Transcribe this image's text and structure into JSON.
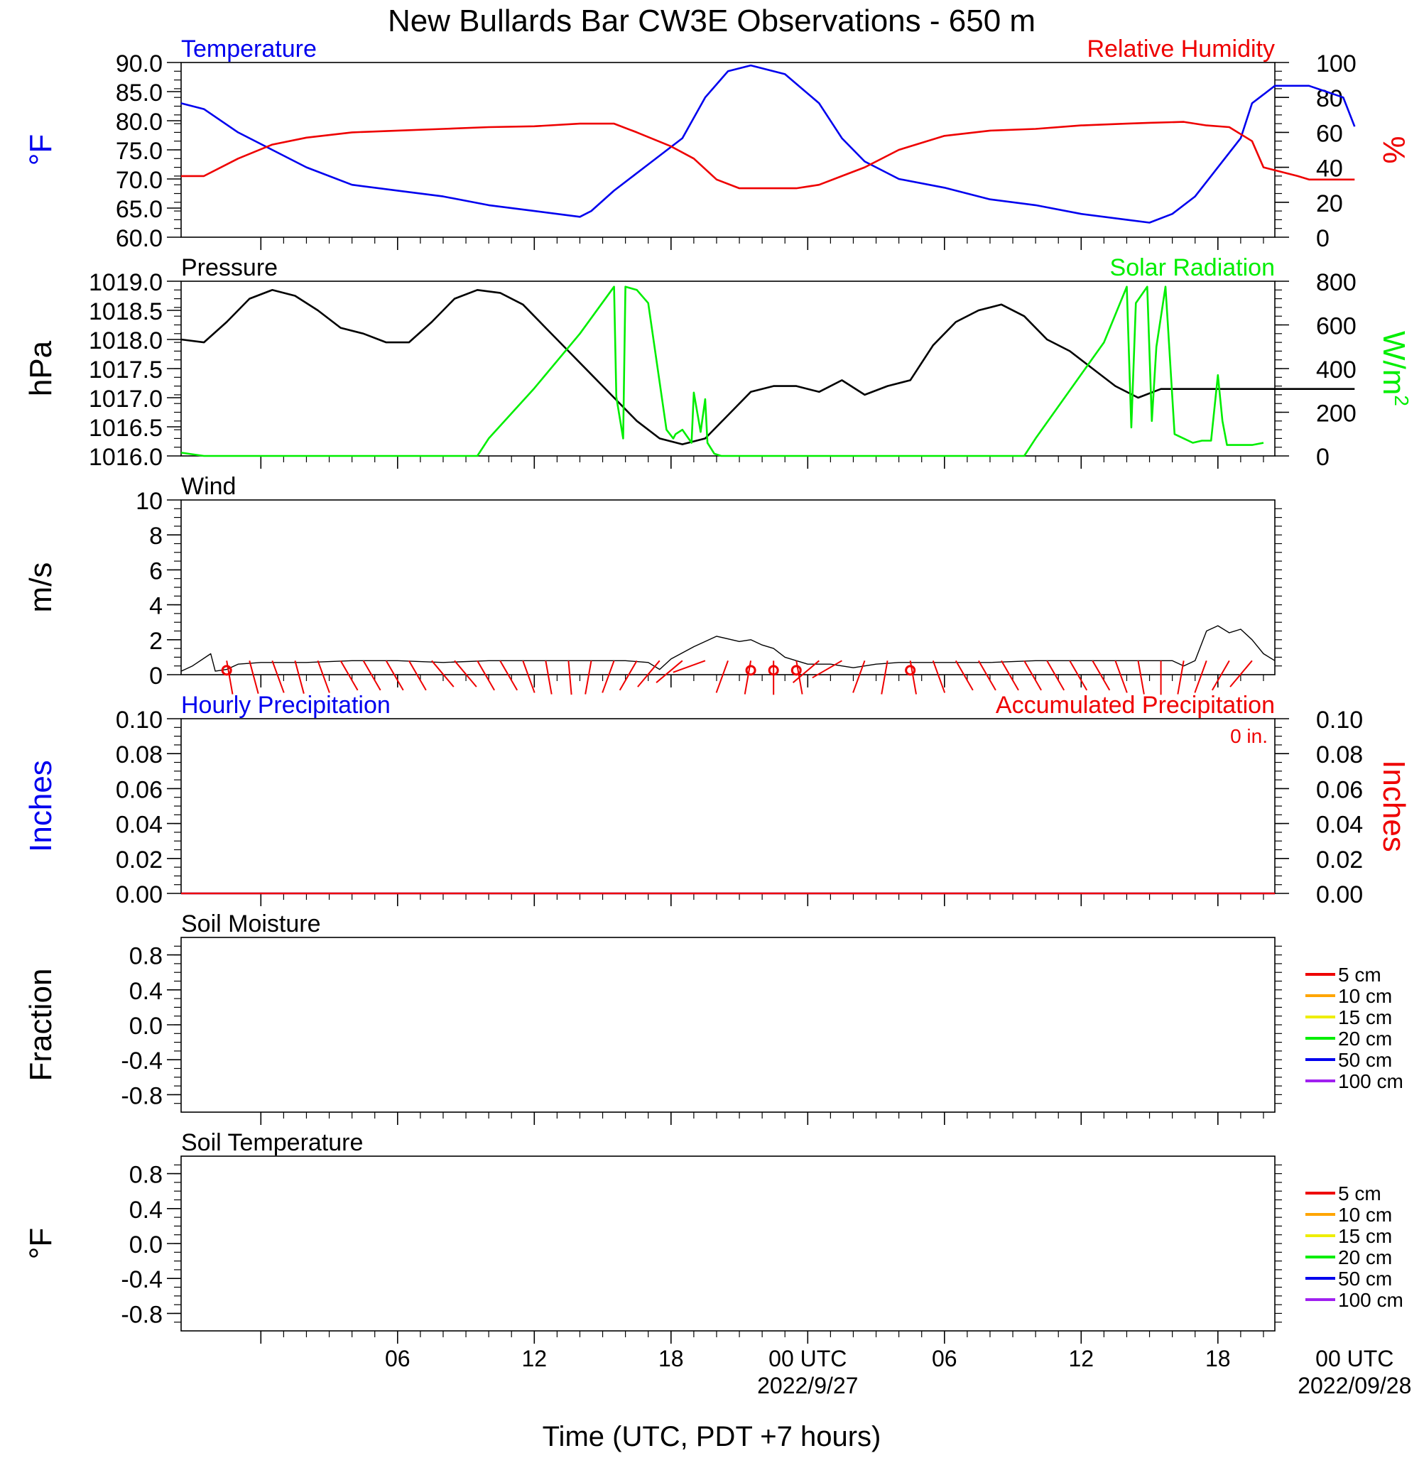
{
  "title": "New Bullards Bar CW3E Observations - 650 m",
  "x_axis": {
    "label": "Time (UTC, PDT +7 hours)",
    "range_hours": [
      -3.5,
      44.5
    ],
    "ticks": [
      {
        "h": 6,
        "label": "06",
        "date": ""
      },
      {
        "h": 12,
        "label": "12",
        "date": ""
      },
      {
        "h": 18,
        "label": "18",
        "date": ""
      },
      {
        "h": 24,
        "label": "00 UTC",
        "date": "2022/9/27"
      },
      {
        "h": 30,
        "label": "06",
        "date": ""
      },
      {
        "h": 36,
        "label": "12",
        "date": ""
      },
      {
        "h": 42,
        "label": "18",
        "date": ""
      },
      {
        "h": 48,
        "label": "00 UTC",
        "date": "2022/09/28"
      }
    ]
  },
  "colors": {
    "temperature": "#0000ee",
    "humidity": "#ee0000",
    "pressure": "#000000",
    "solar": "#00ee00",
    "wind_speed": "#000000",
    "wind_barb": "#ee0000",
    "hourly_precip": "#0000ee",
    "accum_precip": "#ee0000"
  },
  "chart_data": [
    {
      "type": "line",
      "id": "temp_rh",
      "title_left": "Temperature",
      "title_right": "Relative Humidity",
      "ylabel_left": "°F",
      "ylabel_right": "%",
      "ylim_left": [
        60,
        90
      ],
      "yticks_left": [
        "90.0",
        "85.0",
        "80.0",
        "75.0",
        "70.0",
        "65.0",
        "60.0"
      ],
      "ylim_right": [
        0,
        100
      ],
      "yticks_right": [
        "100",
        "80",
        "60",
        "40",
        "20",
        "0"
      ],
      "series": [
        {
          "name": "Temperature",
          "axis": "left",
          "x": [
            -3.5,
            -2.5,
            -1,
            0.5,
            2,
            4,
            6,
            8,
            10,
            12,
            14,
            14.5,
            15.5,
            17,
            18.5,
            19.5,
            20.5,
            21.5,
            23,
            24.5,
            25.5,
            26.5,
            28,
            30,
            32,
            34,
            36,
            38,
            39,
            40,
            41,
            42,
            43,
            43.5,
            44.5,
            46,
            47.5,
            48
          ],
          "values": [
            83,
            82,
            78,
            75,
            72,
            69,
            68,
            67,
            65.5,
            64.5,
            63.5,
            64.5,
            68,
            72.5,
            77,
            84,
            88.5,
            89.5,
            88,
            83,
            77,
            73,
            70,
            68.5,
            66.5,
            65.5,
            64,
            63,
            62.5,
            64,
            67,
            72,
            77,
            83,
            86,
            86,
            84,
            79
          ]
        },
        {
          "name": "Relative Humidity",
          "axis": "right",
          "x": [
            -3.5,
            -2.5,
            -1,
            0.5,
            2,
            4,
            6,
            8,
            10,
            12,
            14,
            15.5,
            16.5,
            18,
            19,
            20,
            21,
            22,
            23.5,
            24.5,
            25.5,
            26.5,
            28,
            30,
            32,
            34,
            36,
            38,
            39,
            40.5,
            41.5,
            42.5,
            43.5,
            44,
            45.5,
            46,
            47,
            48
          ],
          "values": [
            35,
            35,
            45,
            53,
            57,
            60,
            61,
            62,
            63,
            63.5,
            65,
            65,
            60,
            52,
            45,
            33,
            28,
            28,
            28,
            30,
            35,
            40,
            50,
            58,
            61,
            62,
            64,
            65,
            65.5,
            66,
            64,
            63,
            55,
            40,
            35,
            33,
            33,
            33
          ]
        }
      ]
    },
    {
      "type": "line",
      "id": "pressure_solar",
      "title_left": "Pressure",
      "title_right": "Solar Radiation",
      "ylabel_left": "hPa",
      "ylabel_right": "W/m",
      "ylabel_right_sup": "2",
      "ylim_left": [
        1016.0,
        1019.0
      ],
      "yticks_left": [
        "1019.0",
        "1018.5",
        "1018.0",
        "1017.5",
        "1017.0",
        "1016.5",
        "1016.0"
      ],
      "ylim_right": [
        0,
        800
      ],
      "yticks_right": [
        "800",
        "600",
        "400",
        "200",
        "0"
      ],
      "series": [
        {
          "name": "Pressure",
          "axis": "left",
          "x": [
            -3.5,
            -2.5,
            -1.5,
            -0.5,
            0.5,
            1.5,
            2.5,
            3.5,
            4.5,
            5.5,
            6.5,
            7.5,
            8.5,
            9.5,
            10.5,
            11.5,
            12.5,
            13.5,
            14.5,
            15.5,
            16.5,
            17.5,
            18.5,
            19.5,
            20.5,
            21.5,
            22.5,
            23.5,
            24.5,
            25.5,
            26.5,
            27.5,
            28.5,
            29.5,
            30.5,
            31.5,
            32.5,
            33.5,
            34.5,
            35.5,
            36.5,
            37.5,
            38.5,
            39.5,
            40.5,
            41.5,
            42.5,
            43.5,
            44.5,
            45.5,
            46.5,
            47.5,
            48
          ],
          "values": [
            1018.0,
            1017.95,
            1018.3,
            1018.7,
            1018.85,
            1018.75,
            1018.5,
            1018.2,
            1018.1,
            1017.95,
            1017.95,
            1018.3,
            1018.7,
            1018.85,
            1018.8,
            1018.6,
            1018.2,
            1017.8,
            1017.4,
            1017.0,
            1016.6,
            1016.3,
            1016.2,
            1016.3,
            1016.7,
            1017.1,
            1017.2,
            1017.2,
            1017.1,
            1017.3,
            1017.05,
            1017.2,
            1017.3,
            1017.9,
            1018.3,
            1018.5,
            1018.6,
            1018.4,
            1018.0,
            1017.8,
            1017.5,
            1017.2,
            1017.0,
            1017.15,
            1017.15,
            1017.15,
            1017.15,
            1017.15,
            1017.15,
            1017.15,
            1017.15,
            1017.15,
            1017.15
          ]
        },
        {
          "name": "Solar Radiation",
          "axis": "right",
          "x": [
            -3.5,
            -2.5,
            9.5,
            10.0,
            12.0,
            14.0,
            15.5,
            15.6,
            15.9,
            16.0,
            16.5,
            17.0,
            17.8,
            18.1,
            18.2,
            18.5,
            18.9,
            19.0,
            19.3,
            19.5,
            19.6,
            19.9,
            20.2,
            20.5,
            21.5,
            22.5,
            23.5,
            24.0,
            33.5,
            34.0,
            37.0,
            38.0,
            38.2,
            38.4,
            38.9,
            39.1,
            39.3,
            39.7,
            39.8,
            40.1,
            40.5,
            40.9,
            41.3,
            41.7,
            42.0,
            42.2,
            42.4,
            42.8,
            43.2,
            43.5,
            44.0
          ],
          "values": [
            15,
            0,
            0,
            80,
            310,
            560,
            775,
            270,
            80,
            775,
            760,
            700,
            120,
            80,
            100,
            120,
            60,
            290,
            110,
            260,
            60,
            10,
            0,
            0,
            0,
            0,
            0,
            0,
            0,
            80,
            520,
            775,
            130,
            700,
            775,
            160,
            500,
            775,
            610,
            100,
            80,
            60,
            70,
            70,
            370,
            160,
            50,
            50,
            50,
            50,
            60
          ]
        }
      ]
    },
    {
      "type": "line",
      "id": "wind",
      "title_left": "Wind",
      "ylabel_left": "m/s",
      "ylim_left": [
        0,
        10
      ],
      "yticks_left": [
        "10",
        "8",
        "6",
        "4",
        "2",
        "0"
      ],
      "series": [
        {
          "name": "Wind",
          "x": [
            -3.5,
            -3.0,
            -2.2,
            -2.0,
            -1.5,
            -1.0,
            0.0,
            2.0,
            4.0,
            6.0,
            8.0,
            10.0,
            12.0,
            14.0,
            16.0,
            17.0,
            17.5,
            18.0,
            19.0,
            20.0,
            21.0,
            21.5,
            22.0,
            22.5,
            23.0,
            24.0,
            25.0,
            26.0,
            27.0,
            28.0,
            30.0,
            32.0,
            34.0,
            36.0,
            38.0,
            40.0,
            40.5,
            41.0,
            41.5,
            42.0,
            42.5,
            43.0,
            43.5,
            44.0,
            44.5
          ],
          "values": [
            0.2,
            0.5,
            1.2,
            0.2,
            0.3,
            0.6,
            0.7,
            0.7,
            0.8,
            0.8,
            0.7,
            0.8,
            0.8,
            0.8,
            0.8,
            0.7,
            0.3,
            0.9,
            1.6,
            2.2,
            1.9,
            2.0,
            1.7,
            1.5,
            1.0,
            0.6,
            0.6,
            0.4,
            0.6,
            0.7,
            0.7,
            0.7,
            0.8,
            0.8,
            0.8,
            0.8,
            0.5,
            0.8,
            2.5,
            2.8,
            2.4,
            2.6,
            2.0,
            1.2,
            0.8
          ]
        }
      ],
      "barbs": {
        "x": [
          -1.5,
          -0.5,
          0.5,
          1.5,
          2.5,
          3.5,
          4.5,
          5.5,
          6.5,
          7.5,
          8.5,
          9.5,
          10.5,
          11.5,
          12.5,
          13.5,
          14.5,
          15.5,
          16.5,
          17.5,
          18.5,
          19.5,
          20.5,
          21.5,
          22.5,
          23.5,
          24.5,
          25.5,
          26.5,
          27.5,
          28.5,
          29.5,
          30.5,
          31.5,
          32.5,
          33.5,
          34.5,
          35.5,
          36.5,
          37.5,
          38.5,
          39.5,
          40.5,
          41.5,
          42.5,
          43.5
        ],
        "angle_deg": [
          170,
          165,
          160,
          165,
          160,
          150,
          150,
          150,
          150,
          140,
          140,
          150,
          150,
          160,
          170,
          175,
          190,
          200,
          210,
          220,
          230,
          250,
          200,
          190,
          180,
          170,
          230,
          240,
          200,
          190,
          170,
          160,
          150,
          150,
          150,
          150,
          150,
          150,
          150,
          160,
          170,
          180,
          190,
          200,
          210,
          220
        ],
        "calm_x": [
          -1.5,
          21.5,
          22.5,
          23.5,
          28.5
        ]
      }
    },
    {
      "type": "line",
      "id": "precip",
      "title_left": "Hourly Precipitation",
      "title_right": "Accumulated Precipitation",
      "annotation_right": "0 in.",
      "ylabel_left": "Inches",
      "ylabel_right": "Inches",
      "ylim_left": [
        0,
        0.1
      ],
      "yticks_left": [
        "0.10",
        "0.08",
        "0.06",
        "0.04",
        "0.02",
        "0.00"
      ],
      "ylim_right": [
        0,
        0.1
      ],
      "yticks_right": [
        "0.10",
        "0.08",
        "0.06",
        "0.04",
        "0.02",
        "0.00"
      ],
      "series": [
        {
          "name": "Hourly Precipitation",
          "axis": "left",
          "x": [
            -3.5,
            44.5
          ],
          "values": [
            0,
            0
          ]
        },
        {
          "name": "Accumulated Precipitation",
          "axis": "right",
          "x": [
            -3.5,
            44.5
          ],
          "values": [
            0,
            0
          ]
        }
      ]
    },
    {
      "type": "line",
      "id": "soil_moisture",
      "title_left": "Soil Moisture",
      "ylabel_left": "Fraction",
      "ylim_left": [
        -1.0,
        1.0
      ],
      "yticks_left": [
        "0.8",
        "0.4",
        "0.0",
        "-0.4",
        "-0.8"
      ],
      "series": [],
      "legend": [
        {
          "label": "5 cm",
          "color": "#ee0000"
        },
        {
          "label": "10 cm",
          "color": "#ffa500"
        },
        {
          "label": "15 cm",
          "color": "#eeee00"
        },
        {
          "label": "20 cm",
          "color": "#00ee00"
        },
        {
          "label": "50 cm",
          "color": "#0000ee"
        },
        {
          "label": "100 cm",
          "color": "#a020f0"
        }
      ]
    },
    {
      "type": "line",
      "id": "soil_temp",
      "title_left": "Soil Temperature",
      "ylabel_left": "°F",
      "ylim_left": [
        -1.0,
        1.0
      ],
      "yticks_left": [
        "0.8",
        "0.4",
        "0.0",
        "-0.4",
        "-0.8"
      ],
      "series": [],
      "legend": [
        {
          "label": "5 cm",
          "color": "#ee0000"
        },
        {
          "label": "10 cm",
          "color": "#ffa500"
        },
        {
          "label": "15 cm",
          "color": "#eeee00"
        },
        {
          "label": "20 cm",
          "color": "#00ee00"
        },
        {
          "label": "50 cm",
          "color": "#0000ee"
        },
        {
          "label": "100 cm",
          "color": "#a020f0"
        }
      ]
    }
  ]
}
